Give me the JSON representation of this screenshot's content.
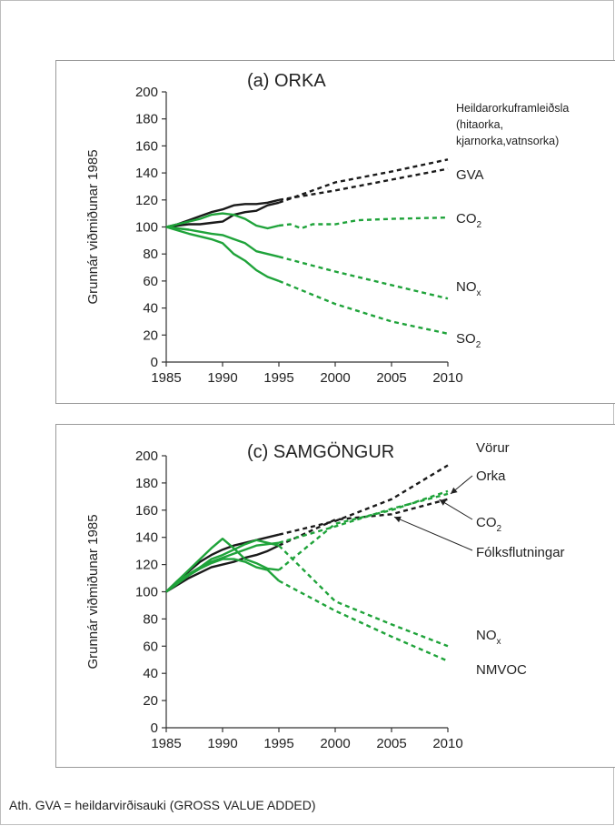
{
  "footnote": "Ath.  GVA = heildarvirðisauki (GROSS VALUE ADDED)",
  "colors": {
    "black": "#1a1a1a",
    "green": "#1fa33a",
    "axis": "#333333"
  },
  "chart_data": [
    {
      "type": "line",
      "title": "(a) ORKA",
      "ylabel": "Grunnár viðmiðunar 1985",
      "xlabel": "",
      "xlim": [
        1985,
        2010
      ],
      "ylim": [
        0,
        200
      ],
      "xticks": [
        1985,
        1990,
        1995,
        2000,
        2005,
        2010
      ],
      "yticks": [
        0,
        20,
        40,
        60,
        80,
        100,
        120,
        140,
        160,
        180,
        200
      ],
      "grid": false,
      "series": [
        {
          "name": "Heildarorkuframleiðsla (hitaorka, kjarnorka,vatnsorka)",
          "label_lines": [
            "Heildarorkuframleiðsla",
            "(hitaorka,",
            "kjarnorka,vatnsorka)"
          ],
          "color": "black",
          "historical": [
            [
              1985,
              100
            ],
            [
              1986,
              101
            ],
            [
              1987,
              102
            ],
            [
              1988,
              102
            ],
            [
              1989,
              103
            ],
            [
              1990,
              104
            ],
            [
              1991,
              109
            ],
            [
              1992,
              111
            ],
            [
              1993,
              112
            ],
            [
              1994,
              116
            ],
            [
              1995,
              118
            ]
          ],
          "projection": [
            [
              1995,
              118
            ],
            [
              2000,
              133
            ],
            [
              2005,
              141
            ],
            [
              2010,
              150
            ]
          ]
        },
        {
          "name": "GVA",
          "color": "black",
          "historical": [
            [
              1985,
              100
            ],
            [
              1986,
              102
            ],
            [
              1987,
              105
            ],
            [
              1988,
              108
            ],
            [
              1989,
              111
            ],
            [
              1990,
              113
            ],
            [
              1991,
              116
            ],
            [
              1992,
              117
            ],
            [
              1993,
              117
            ],
            [
              1994,
              118
            ],
            [
              1995,
              120
            ]
          ],
          "projection": [
            [
              1995,
              120
            ],
            [
              2000,
              127
            ],
            [
              2005,
              135
            ],
            [
              2010,
              143
            ]
          ]
        },
        {
          "name": "CO2",
          "label_base": "CO",
          "label_sub": "2",
          "color": "green",
          "historical": [
            [
              1985,
              100
            ],
            [
              1986,
              102
            ],
            [
              1987,
              104
            ],
            [
              1988,
              106
            ],
            [
              1989,
              109
            ],
            [
              1990,
              110
            ],
            [
              1991,
              109
            ],
            [
              1992,
              106
            ],
            [
              1993,
              101
            ],
            [
              1994,
              99
            ],
            [
              1995,
              101
            ]
          ],
          "projection": [
            [
              1995,
              101
            ],
            [
              1996,
              102
            ],
            [
              1997,
              99
            ],
            [
              1998,
              102
            ],
            [
              2000,
              102
            ],
            [
              2002,
              105
            ],
            [
              2005,
              106
            ],
            [
              2010,
              107
            ]
          ]
        },
        {
          "name": "NOx",
          "label_base": "NO",
          "label_sub": "x",
          "color": "green",
          "historical": [
            [
              1985,
              100
            ],
            [
              1987,
              98
            ],
            [
              1989,
              95
            ],
            [
              1990,
              94
            ],
            [
              1991,
              91
            ],
            [
              1992,
              88
            ],
            [
              1993,
              82
            ],
            [
              1994,
              80
            ],
            [
              1995,
              78
            ]
          ],
          "projection": [
            [
              1995,
              78
            ],
            [
              2000,
              67
            ],
            [
              2005,
              57
            ],
            [
              2010,
              47
            ]
          ]
        },
        {
          "name": "SO2",
          "label_base": "SO",
          "label_sub": "2",
          "color": "green",
          "historical": [
            [
              1985,
              100
            ],
            [
              1987,
              95
            ],
            [
              1989,
              91
            ],
            [
              1990,
              88
            ],
            [
              1991,
              80
            ],
            [
              1992,
              75
            ],
            [
              1993,
              68
            ],
            [
              1994,
              63
            ],
            [
              1995,
              60
            ]
          ],
          "projection": [
            [
              1995,
              60
            ],
            [
              2000,
              43
            ],
            [
              2005,
              30
            ],
            [
              2010,
              21
            ]
          ]
        }
      ]
    },
    {
      "type": "line",
      "title": "(c)  SAMGÖNGUR",
      "ylabel": "Grunnár viðmiðunar 1985",
      "xlabel": "",
      "xlim": [
        1985,
        2010
      ],
      "ylim": [
        0,
        200
      ],
      "xticks": [
        1985,
        1990,
        1995,
        2000,
        2005,
        2010
      ],
      "yticks": [
        0,
        20,
        40,
        60,
        80,
        100,
        120,
        140,
        160,
        180,
        200
      ],
      "grid": false,
      "series": [
        {
          "name": "Vörur",
          "color": "black",
          "historical": [
            [
              1985,
              100
            ],
            [
              1986,
              108
            ],
            [
              1987,
              115
            ],
            [
              1988,
              122
            ],
            [
              1989,
              127
            ],
            [
              1990,
              131
            ],
            [
              1991,
              134
            ],
            [
              1992,
              136
            ],
            [
              1993,
              138
            ],
            [
              1994,
              140
            ],
            [
              1995,
              142
            ]
          ],
          "projection": [
            [
              1995,
              142
            ],
            [
              2000,
              152
            ],
            [
              2005,
              168
            ],
            [
              2010,
              193
            ]
          ]
        },
        {
          "name": "Fólksflutningar",
          "color": "black",
          "historical": [
            [
              1985,
              100
            ],
            [
              1986,
              105
            ],
            [
              1987,
              110
            ],
            [
              1988,
              114
            ],
            [
              1989,
              118
            ],
            [
              1990,
              120
            ],
            [
              1991,
              122
            ],
            [
              1992,
              125
            ],
            [
              1993,
              127
            ],
            [
              1994,
              130
            ],
            [
              1995,
              134
            ]
          ],
          "projection": [
            [
              1995,
              134
            ],
            [
              2000,
              153
            ],
            [
              2005,
              157
            ],
            [
              2010,
              168
            ]
          ]
        },
        {
          "name": "Orka",
          "color": "green",
          "historical": [
            [
              1985,
              100
            ],
            [
              1986,
              108
            ],
            [
              1987,
              116
            ],
            [
              1988,
              124
            ],
            [
              1989,
              132
            ],
            [
              1990,
              139
            ],
            [
              1991,
              132
            ],
            [
              1992,
              124
            ],
            [
              1993,
              121
            ],
            [
              1994,
              117
            ],
            [
              1995,
              116
            ]
          ],
          "projection": [
            [
              1995,
              116
            ],
            [
              2000,
              150
            ],
            [
              2005,
              160
            ],
            [
              2010,
              174
            ]
          ]
        },
        {
          "name": "CO2",
          "label_base": "CO",
          "label_sub": "2",
          "color": "green",
          "historical": [
            [
              1985,
              100
            ],
            [
              1986,
              107
            ],
            [
              1987,
              113
            ],
            [
              1988,
              118
            ],
            [
              1989,
              122
            ],
            [
              1990,
              125
            ],
            [
              1991,
              128
            ],
            [
              1992,
              131
            ],
            [
              1993,
              134
            ],
            [
              1994,
              135
            ],
            [
              1995,
              136
            ]
          ],
          "projection": [
            [
              1995,
              136
            ],
            [
              2000,
              148
            ],
            [
              2005,
              161
            ],
            [
              2010,
              172
            ]
          ]
        },
        {
          "name": "NOx",
          "label_base": "NO",
          "label_sub": "x",
          "color": "green",
          "historical": [
            [
              1985,
              100
            ],
            [
              1986,
              107
            ],
            [
              1987,
              113
            ],
            [
              1988,
              118
            ],
            [
              1989,
              124
            ],
            [
              1990,
              127
            ],
            [
              1991,
              131
            ],
            [
              1992,
              135
            ],
            [
              1993,
              138
            ],
            [
              1994,
              136
            ],
            [
              1995,
              134
            ]
          ],
          "projection": [
            [
              1995,
              134
            ],
            [
              2000,
              93
            ],
            [
              2005,
              76
            ],
            [
              2010,
              60
            ]
          ]
        },
        {
          "name": "NMVOC",
          "color": "green",
          "historical": [
            [
              1985,
              100
            ],
            [
              1986,
              106
            ],
            [
              1987,
              112
            ],
            [
              1988,
              117
            ],
            [
              1989,
              121
            ],
            [
              1990,
              124
            ],
            [
              1991,
              124
            ],
            [
              1992,
              122
            ],
            [
              1993,
              118
            ],
            [
              1994,
              116
            ],
            [
              1995,
              108
            ]
          ],
          "projection": [
            [
              1995,
              108
            ],
            [
              2000,
              86
            ],
            [
              2005,
              67
            ],
            [
              2010,
              49
            ]
          ]
        }
      ]
    }
  ],
  "panels": [
    {
      "id": "a",
      "labels": [
        {
          "series": 0,
          "lines": [
            "Heildarorkuframleiðsla",
            "(hitaorka,",
            "kjarnorka,vatnsorka)"
          ],
          "size": 12.5
        },
        {
          "series": 1,
          "text": "GVA",
          "size": 15
        },
        {
          "series": 2,
          "text": "CO",
          "sub": "2",
          "size": 15
        },
        {
          "series": 3,
          "text": "NO",
          "sub": "x",
          "size": 15
        },
        {
          "series": 4,
          "text": "SO",
          "sub": "2",
          "size": 15
        }
      ]
    },
    {
      "id": "c",
      "labels": [
        {
          "series": 0,
          "text": "Vörur",
          "size": 15
        },
        {
          "series": 2,
          "text": "Orka",
          "size": 15
        },
        {
          "series": 3,
          "text": "CO",
          "sub": "2",
          "size": 15
        },
        {
          "series": 1,
          "text": "Fólksflutningar",
          "size": 15
        },
        {
          "series": 4,
          "text": "NO",
          "sub": "x",
          "size": 15
        },
        {
          "series": 5,
          "text": "NMVOC",
          "size": 15
        }
      ]
    }
  ]
}
